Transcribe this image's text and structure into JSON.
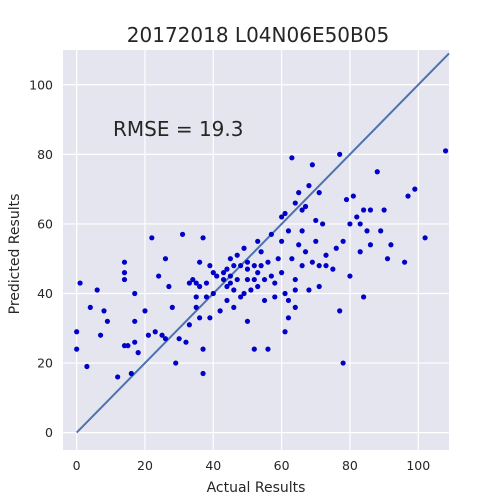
{
  "chart_data": {
    "type": "scatter",
    "title": "20172018 L04N06E50B05",
    "xlabel": "Actual Results",
    "ylabel": "Predicted Results",
    "annotation": "RMSE = 19.3",
    "xlim": [
      -4,
      109
    ],
    "ylim": [
      -5,
      110
    ],
    "xticks": [
      0,
      20,
      40,
      60,
      80,
      100
    ],
    "yticks": [
      0,
      20,
      40,
      60,
      80,
      100
    ],
    "grid": true,
    "background_color": "#e5e5ef",
    "grid_color": "#ffffff",
    "point_color": "#0000c8",
    "line_color": "#4c72b0",
    "reference_line": {
      "label": "y = x",
      "from": [
        0,
        0
      ],
      "to": [
        109,
        109
      ]
    },
    "series": [
      {
        "points": [
          [
            0,
            29
          ],
          [
            0,
            24
          ],
          [
            1,
            43
          ],
          [
            3,
            19
          ],
          [
            4,
            36
          ],
          [
            6,
            41
          ],
          [
            7,
            28
          ],
          [
            8,
            35
          ],
          [
            9,
            32
          ],
          [
            12,
            16
          ],
          [
            14,
            25
          ],
          [
            14,
            44
          ],
          [
            14,
            46
          ],
          [
            14,
            49
          ],
          [
            15,
            25
          ],
          [
            16,
            17
          ],
          [
            17,
            32
          ],
          [
            17,
            26
          ],
          [
            17,
            40
          ],
          [
            18,
            23
          ],
          [
            20,
            35
          ],
          [
            21,
            28
          ],
          [
            22,
            56
          ],
          [
            23,
            29
          ],
          [
            24,
            45
          ],
          [
            25,
            28
          ],
          [
            26,
            27
          ],
          [
            26,
            50
          ],
          [
            27,
            42
          ],
          [
            28,
            36
          ],
          [
            29,
            20
          ],
          [
            30,
            27
          ],
          [
            31,
            57
          ],
          [
            32,
            26
          ],
          [
            33,
            43
          ],
          [
            33,
            31
          ],
          [
            34,
            44
          ],
          [
            35,
            43
          ],
          [
            35,
            39
          ],
          [
            35,
            36
          ],
          [
            36,
            49
          ],
          [
            36,
            33
          ],
          [
            36,
            42
          ],
          [
            37,
            56
          ],
          [
            37,
            24
          ],
          [
            37,
            17
          ],
          [
            38,
            43
          ],
          [
            38,
            39
          ],
          [
            39,
            33
          ],
          [
            39,
            48
          ],
          [
            40,
            40
          ],
          [
            40,
            46
          ],
          [
            41,
            45
          ],
          [
            42,
            35
          ],
          [
            43,
            46
          ],
          [
            43,
            44
          ],
          [
            44,
            47
          ],
          [
            44,
            42
          ],
          [
            44,
            38
          ],
          [
            45,
            43
          ],
          [
            45,
            50
          ],
          [
            45,
            45
          ],
          [
            46,
            41
          ],
          [
            46,
            48
          ],
          [
            46,
            36
          ],
          [
            47,
            44
          ],
          [
            47,
            51
          ],
          [
            48,
            48
          ],
          [
            48,
            39
          ],
          [
            49,
            53
          ],
          [
            49,
            40
          ],
          [
            50,
            49
          ],
          [
            50,
            47
          ],
          [
            50,
            44
          ],
          [
            50,
            32
          ],
          [
            51,
            41
          ],
          [
            52,
            44
          ],
          [
            52,
            48
          ],
          [
            52,
            24
          ],
          [
            53,
            55
          ],
          [
            53,
            46
          ],
          [
            53,
            42
          ],
          [
            54,
            48
          ],
          [
            54,
            52
          ],
          [
            55,
            44
          ],
          [
            55,
            38
          ],
          [
            56,
            49
          ],
          [
            56,
            24
          ],
          [
            57,
            57
          ],
          [
            57,
            45
          ],
          [
            58,
            43
          ],
          [
            58,
            39
          ],
          [
            59,
            50
          ],
          [
            60,
            62
          ],
          [
            60,
            55
          ],
          [
            60,
            46
          ],
          [
            61,
            63
          ],
          [
            61,
            40
          ],
          [
            61,
            29
          ],
          [
            62,
            58
          ],
          [
            62,
            38
          ],
          [
            62,
            33
          ],
          [
            63,
            79
          ],
          [
            63,
            50
          ],
          [
            64,
            44
          ],
          [
            64,
            36
          ],
          [
            64,
            41
          ],
          [
            64,
            66
          ],
          [
            65,
            69
          ],
          [
            65,
            54
          ],
          [
            66,
            64
          ],
          [
            66,
            58
          ],
          [
            66,
            48
          ],
          [
            67,
            65
          ],
          [
            67,
            52
          ],
          [
            68,
            71
          ],
          [
            68,
            41
          ],
          [
            69,
            49
          ],
          [
            69,
            77
          ],
          [
            70,
            61
          ],
          [
            70,
            55
          ],
          [
            71,
            48
          ],
          [
            71,
            42
          ],
          [
            71,
            69
          ],
          [
            72,
            60
          ],
          [
            73,
            51
          ],
          [
            73,
            48
          ],
          [
            75,
            47
          ],
          [
            76,
            53
          ],
          [
            77,
            80
          ],
          [
            77,
            35
          ],
          [
            78,
            55
          ],
          [
            78,
            20
          ],
          [
            79,
            67
          ],
          [
            80,
            60
          ],
          [
            80,
            45
          ],
          [
            81,
            68
          ],
          [
            82,
            62
          ],
          [
            83,
            60
          ],
          [
            83,
            52
          ],
          [
            84,
            64
          ],
          [
            84,
            39
          ],
          [
            85,
            58
          ],
          [
            86,
            54
          ],
          [
            86,
            64
          ],
          [
            88,
            75
          ],
          [
            89,
            58
          ],
          [
            90,
            64
          ],
          [
            91,
            50
          ],
          [
            92,
            54
          ],
          [
            96,
            49
          ],
          [
            97,
            68
          ],
          [
            99,
            70
          ],
          [
            102,
            56
          ],
          [
            108,
            81
          ]
        ]
      }
    ]
  }
}
